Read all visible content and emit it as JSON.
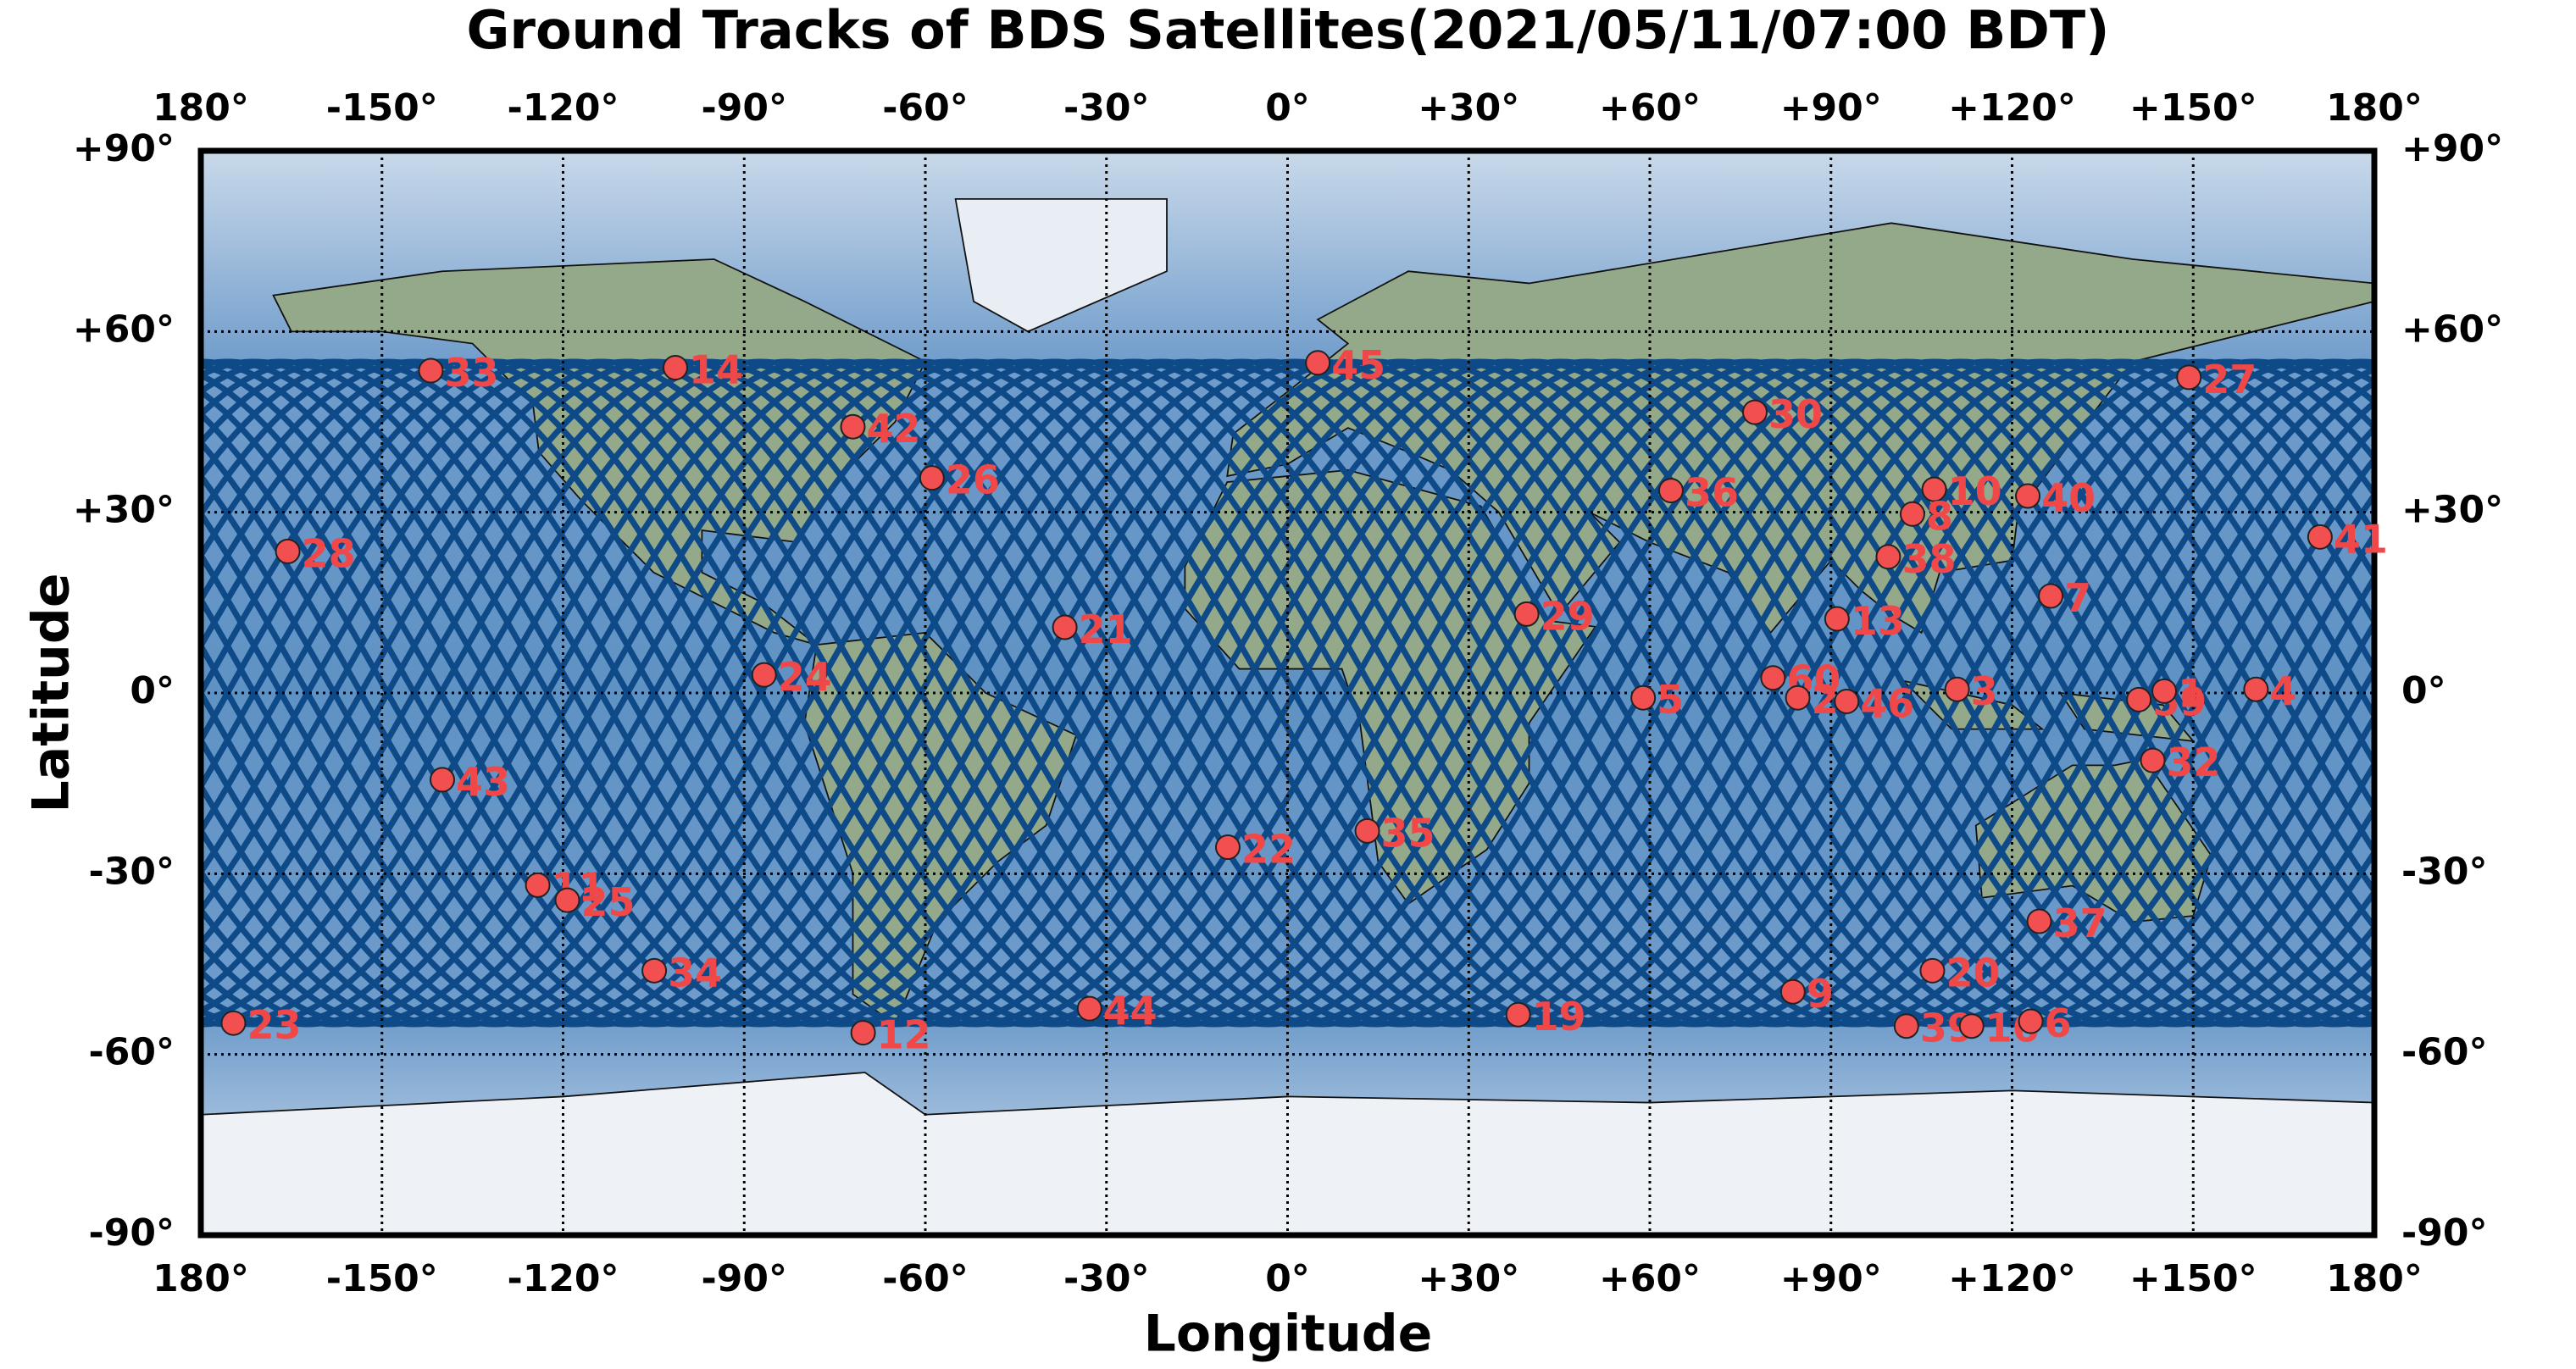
{
  "chart_data": {
    "type": "scatter",
    "title": "Ground Tracks of BDS Satellites(2021/05/11/07:00 BDT)",
    "x_label": "Longitude",
    "y_label": "Latitude",
    "xlim": [
      -180,
      180
    ],
    "ylim": [
      -90,
      90
    ],
    "xticks": [
      {
        "value": -180,
        "label": "180°"
      },
      {
        "value": -150,
        "label": "-150°"
      },
      {
        "value": -120,
        "label": "-120°"
      },
      {
        "value": -90,
        "label": "-90°"
      },
      {
        "value": -60,
        "label": "-60°"
      },
      {
        "value": -30,
        "label": "-30°"
      },
      {
        "value": 0,
        "label": "0°"
      },
      {
        "value": 30,
        "label": "+30°"
      },
      {
        "value": 60,
        "label": "+60°"
      },
      {
        "value": 90,
        "label": "+90°"
      },
      {
        "value": 120,
        "label": "+120°"
      },
      {
        "value": 150,
        "label": "+150°"
      },
      {
        "value": 180,
        "label": "180°"
      }
    ],
    "yticks": [
      {
        "value": 90,
        "label": "+90°"
      },
      {
        "value": 60,
        "label": "+60°"
      },
      {
        "value": 30,
        "label": "+30°"
      },
      {
        "value": 0,
        "label": "0°"
      },
      {
        "value": -30,
        "label": "-30°"
      },
      {
        "value": -60,
        "label": "-60°"
      },
      {
        "value": -90,
        "label": "-90°"
      }
    ],
    "grid": true,
    "color": "#f25050",
    "label_color": "#f04848",
    "point_labels": [
      "33",
      "14",
      "45",
      "27",
      "30",
      "42",
      "26",
      "36",
      "10",
      "40",
      "8",
      "41",
      "28",
      "38",
      "7",
      "29",
      "13",
      "21",
      "24",
      "60",
      "3",
      "4",
      "2",
      "46",
      "5",
      "59",
      "1",
      "32",
      "43",
      "22",
      "35",
      "11",
      "25",
      "37",
      "34",
      "20",
      "9",
      "44",
      "19",
      "23",
      "39",
      "16",
      "6",
      "12"
    ],
    "x": [
      -141.9,
      -101.4,
      5.0,
      149.3,
      77.4,
      -72.0,
      -58.9,
      63.5,
      107.1,
      122.6,
      103.5,
      171.0,
      -165.6,
      99.5,
      126.4,
      39.6,
      91.0,
      -36.9,
      -86.7,
      80.4,
      110.9,
      160.4,
      84.5,
      92.6,
      58.9,
      141.0,
      145.2,
      143.3,
      -140.0,
      -9.9,
      13.2,
      -124.2,
      -119.3,
      124.5,
      -104.9,
      106.8,
      83.7,
      -32.8,
      38.2,
      -174.6,
      102.5,
      113.3,
      123.1,
      -70.3
    ],
    "y": [
      53.5,
      54.0,
      54.8,
      52.4,
      46.6,
      44.2,
      35.7,
      33.6,
      33.8,
      32.7,
      29.7,
      25.9,
      23.5,
      22.6,
      16.1,
      13.1,
      12.3,
      10.9,
      3.0,
      2.5,
      0.6,
      0.6,
      -0.8,
      -1.4,
      -0.8,
      -1.1,
      0.3,
      -11.2,
      -14.4,
      -25.6,
      -22.9,
      -31.9,
      -34.4,
      -37.9,
      -46.1,
      -46.1,
      -49.6,
      -52.4,
      -53.4,
      -54.8,
      -55.3,
      -55.3,
      -54.5,
      -56.4
    ]
  }
}
